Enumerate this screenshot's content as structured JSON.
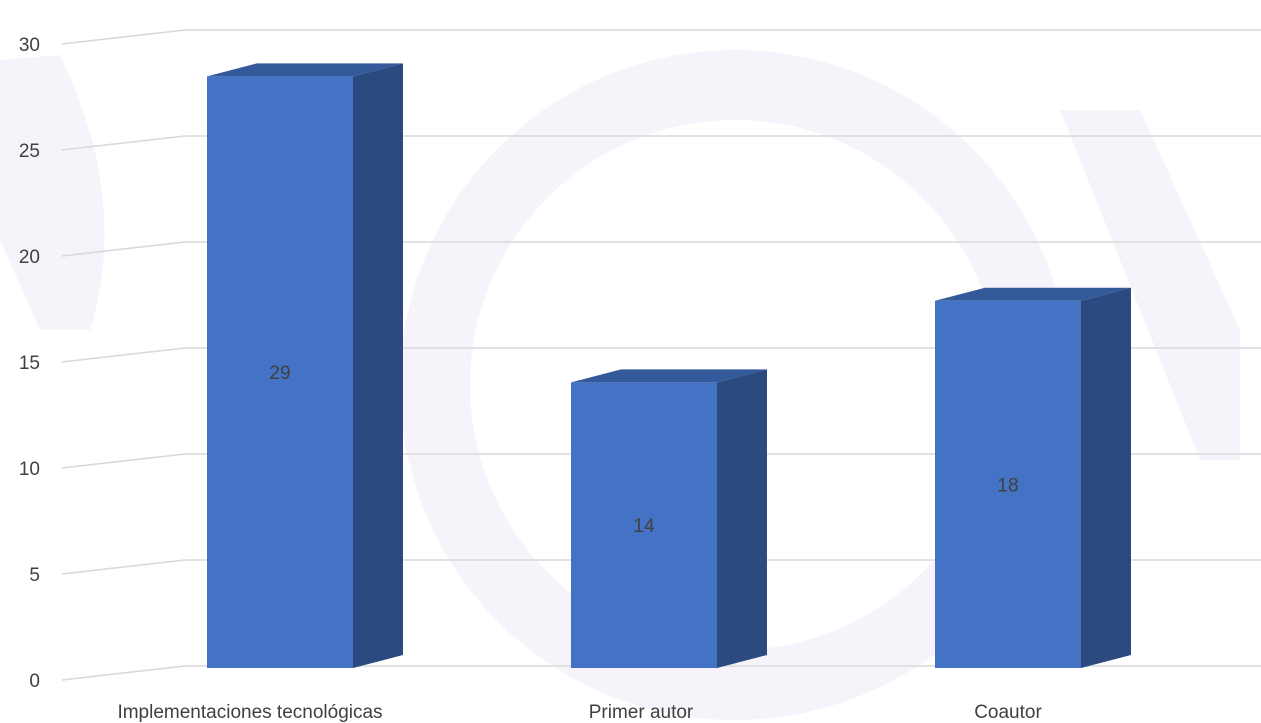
{
  "chart_data": {
    "type": "bar",
    "style": "3d-column",
    "categories": [
      "Implementaciones tecnológicas",
      "Primer autor",
      "Coautor"
    ],
    "values": [
      29,
      14,
      18
    ],
    "data_labels": [
      "29",
      "14",
      "18"
    ],
    "y_ticks": [
      "0",
      "5",
      "10",
      "15",
      "20",
      "25",
      "30"
    ],
    "ylim": [
      0,
      30
    ],
    "grid": true,
    "legend": "none",
    "colors": {
      "bar_front": "#4472C4",
      "bar_side": "#2A4A80",
      "bar_top": "#34599A",
      "gridline": "#D9D9D9",
      "text": "#404040",
      "watermark": "#EEEAF8"
    }
  }
}
